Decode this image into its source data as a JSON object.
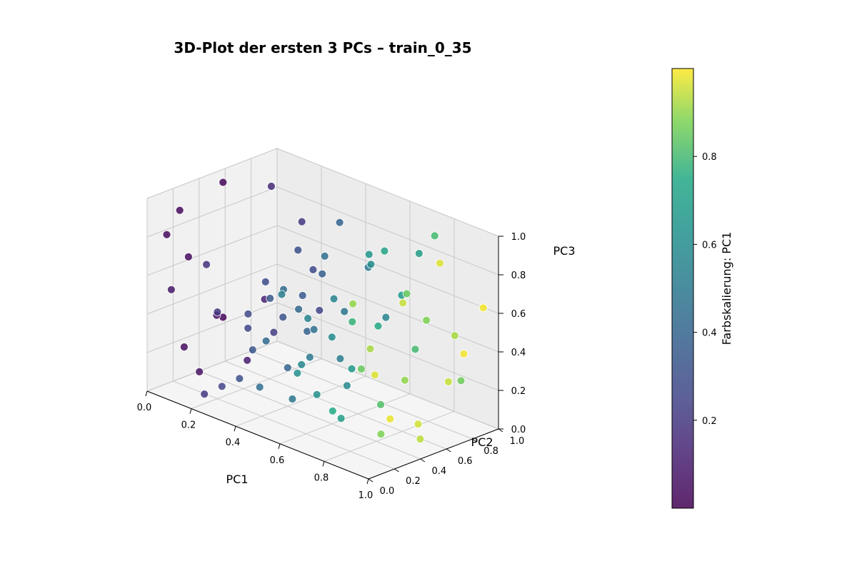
{
  "chart_data": {
    "type": "scatter",
    "title": "3D-Plot der ersten 3 PCs – train_0_35",
    "xlabel": "PC1",
    "ylabel": "PC2",
    "zlabel": "PC3",
    "xlim": [
      0,
      1
    ],
    "ylim": [
      0,
      1
    ],
    "zlim": [
      0,
      1
    ],
    "x_ticks": [
      "0.0",
      "0.2",
      "0.4",
      "0.6",
      "0.8",
      "1.0"
    ],
    "y_ticks": [
      "0.0",
      "0.2",
      "0.4",
      "0.6",
      "0.8",
      "1.0"
    ],
    "z_ticks": [
      "0.0",
      "0.2",
      "0.4",
      "0.6",
      "0.8",
      "1.0"
    ],
    "grid": true,
    "colormap": "viridis",
    "colorbar": {
      "label": "Farbskalierung: PC1",
      "ticks": [
        "0.2",
        "0.4",
        "0.6",
        "0.8"
      ],
      "range": [
        0.0,
        1.0
      ]
    },
    "points": [
      {
        "x": 0.03,
        "y": 0.2,
        "z": 0.9
      },
      {
        "x": 0.02,
        "y": 0.55,
        "z": 0.95
      },
      {
        "x": 0.15,
        "y": 0.7,
        "z": 0.95
      },
      {
        "x": 0.04,
        "y": 0.25,
        "z": 0.65
      },
      {
        "x": 0.08,
        "y": 0.05,
        "z": 0.55
      },
      {
        "x": 0.05,
        "y": 0.45,
        "z": 0.3
      },
      {
        "x": 0.02,
        "y": 0.55,
        "z": 0.25
      },
      {
        "x": 0.06,
        "y": 0.3,
        "z": 0.05
      },
      {
        "x": 0.12,
        "y": 0.7,
        "z": 0.35
      },
      {
        "x": 0.05,
        "y": 0.2,
        "z": 0.2
      },
      {
        "x": 0.1,
        "y": 0.6,
        "z": 0.05
      },
      {
        "x": 0.03,
        "y": 0.1,
        "z": 0.8
      },
      {
        "x": 0.18,
        "y": 0.15,
        "z": 0.7
      },
      {
        "x": 0.2,
        "y": 0.2,
        "z": 0.45
      },
      {
        "x": 0.22,
        "y": 0.6,
        "z": 0.25
      },
      {
        "x": 0.25,
        "y": 0.9,
        "z": 0.3
      },
      {
        "x": 0.2,
        "y": 0.85,
        "z": 0.75
      },
      {
        "x": 0.28,
        "y": 0.8,
        "z": 0.55
      },
      {
        "x": 0.2,
        "y": 0.1,
        "z": 0.05
      },
      {
        "x": 0.25,
        "y": 0.15,
        "z": 0.1
      },
      {
        "x": 0.3,
        "y": 0.2,
        "z": 0.15
      },
      {
        "x": 0.25,
        "y": 0.35,
        "z": 0.35
      },
      {
        "x": 0.28,
        "y": 0.3,
        "z": 0.45
      },
      {
        "x": 0.3,
        "y": 0.4,
        "z": 0.6
      },
      {
        "x": 0.32,
        "y": 0.5,
        "z": 0.4
      },
      {
        "x": 0.3,
        "y": 0.65,
        "z": 0.7
      },
      {
        "x": 0.35,
        "y": 0.6,
        "z": 0.5
      },
      {
        "x": 0.33,
        "y": 0.25,
        "z": 0.3
      },
      {
        "x": 0.35,
        "y": 0.35,
        "z": 0.55
      },
      {
        "x": 0.4,
        "y": 0.55,
        "z": 0.35
      },
      {
        "x": 0.38,
        "y": 0.7,
        "z": 0.6
      },
      {
        "x": 0.42,
        "y": 0.45,
        "z": 0.5
      },
      {
        "x": 0.4,
        "y": 0.8,
        "z": 0.85
      },
      {
        "x": 0.45,
        "y": 0.6,
        "z": 0.75
      },
      {
        "x": 0.44,
        "y": 0.3,
        "z": 0.65
      },
      {
        "x": 0.4,
        "y": 0.4,
        "z": 0.2
      },
      {
        "x": 0.46,
        "y": 0.5,
        "z": 0.4
      },
      {
        "x": 0.42,
        "y": 0.2,
        "z": 0.4
      },
      {
        "x": 0.45,
        "y": 0.1,
        "z": 0.2
      },
      {
        "x": 0.48,
        "y": 0.3,
        "z": 0.1
      },
      {
        "x": 0.5,
        "y": 0.4,
        "z": 0.3
      },
      {
        "x": 0.52,
        "y": 0.6,
        "z": 0.25
      },
      {
        "x": 0.48,
        "y": 0.7,
        "z": 0.45
      },
      {
        "x": 0.5,
        "y": 0.85,
        "z": 0.65
      },
      {
        "x": 0.55,
        "y": 0.3,
        "z": 0.55
      },
      {
        "x": 0.55,
        "y": 0.5,
        "z": 0.6
      },
      {
        "x": 0.52,
        "y": 0.15,
        "z": 0.7
      },
      {
        "x": 0.58,
        "y": 0.2,
        "z": 0.35
      },
      {
        "x": 0.55,
        "y": 0.9,
        "z": 0.4
      },
      {
        "x": 0.6,
        "y": 0.4,
        "z": 0.45
      },
      {
        "x": 0.6,
        "y": 0.7,
        "z": 0.75
      },
      {
        "x": 0.58,
        "y": 0.55,
        "z": 0.15
      },
      {
        "x": 0.62,
        "y": 0.25,
        "z": 0.2
      },
      {
        "x": 0.65,
        "y": 0.6,
        "z": 0.85
      },
      {
        "x": 0.62,
        "y": 0.1,
        "z": 0.35
      },
      {
        "x": 0.68,
        "y": 0.8,
        "z": 0.6
      },
      {
        "x": 0.66,
        "y": 0.45,
        "z": 0.3
      },
      {
        "x": 0.7,
        "y": 0.3,
        "z": 0.1
      },
      {
        "x": 0.72,
        "y": 0.6,
        "z": 0.9
      },
      {
        "x": 0.7,
        "y": 0.9,
        "z": 0.8
      },
      {
        "x": 0.75,
        "y": 0.5,
        "z": 0.55
      },
      {
        "x": 0.78,
        "y": 0.25,
        "z": 0.65
      },
      {
        "x": 0.75,
        "y": 0.15,
        "z": 0.2
      },
      {
        "x": 0.8,
        "y": 0.7,
        "z": 0.4
      },
      {
        "x": 0.82,
        "y": 0.4,
        "z": 0.2
      },
      {
        "x": 0.8,
        "y": 0.85,
        "z": 0.95
      },
      {
        "x": 0.85,
        "y": 0.55,
        "z": 0.75
      },
      {
        "x": 0.85,
        "y": 0.2,
        "z": 0.45
      },
      {
        "x": 0.88,
        "y": 0.3,
        "z": 0.1
      },
      {
        "x": 0.88,
        "y": 0.65,
        "z": 0.6
      },
      {
        "x": 0.9,
        "y": 0.45,
        "z": 0.35
      },
      {
        "x": 0.92,
        "y": 0.8,
        "z": 0.5
      },
      {
        "x": 0.92,
        "y": 0.15,
        "z": 0.6
      },
      {
        "x": 0.95,
        "y": 0.35,
        "z": 0.8
      },
      {
        "x": 0.95,
        "y": 0.7,
        "z": 0.3
      },
      {
        "x": 0.97,
        "y": 0.6,
        "z": 0.95
      },
      {
        "x": 0.98,
        "y": 0.2,
        "z": 0.25
      },
      {
        "x": 0.96,
        "y": 0.45,
        "z": 0.15
      },
      {
        "x": 0.99,
        "y": 0.9,
        "z": 0.65
      },
      {
        "x": 0.97,
        "y": 0.1,
        "z": 0.5
      },
      {
        "x": 0.94,
        "y": 0.5,
        "z": 0.05
      },
      {
        "x": 0.9,
        "y": 0.05,
        "z": 0.85
      },
      {
        "x": 0.86,
        "y": 0.95,
        "z": 0.2
      },
      {
        "x": 0.99,
        "y": 0.75,
        "z": 0.45
      }
    ]
  }
}
